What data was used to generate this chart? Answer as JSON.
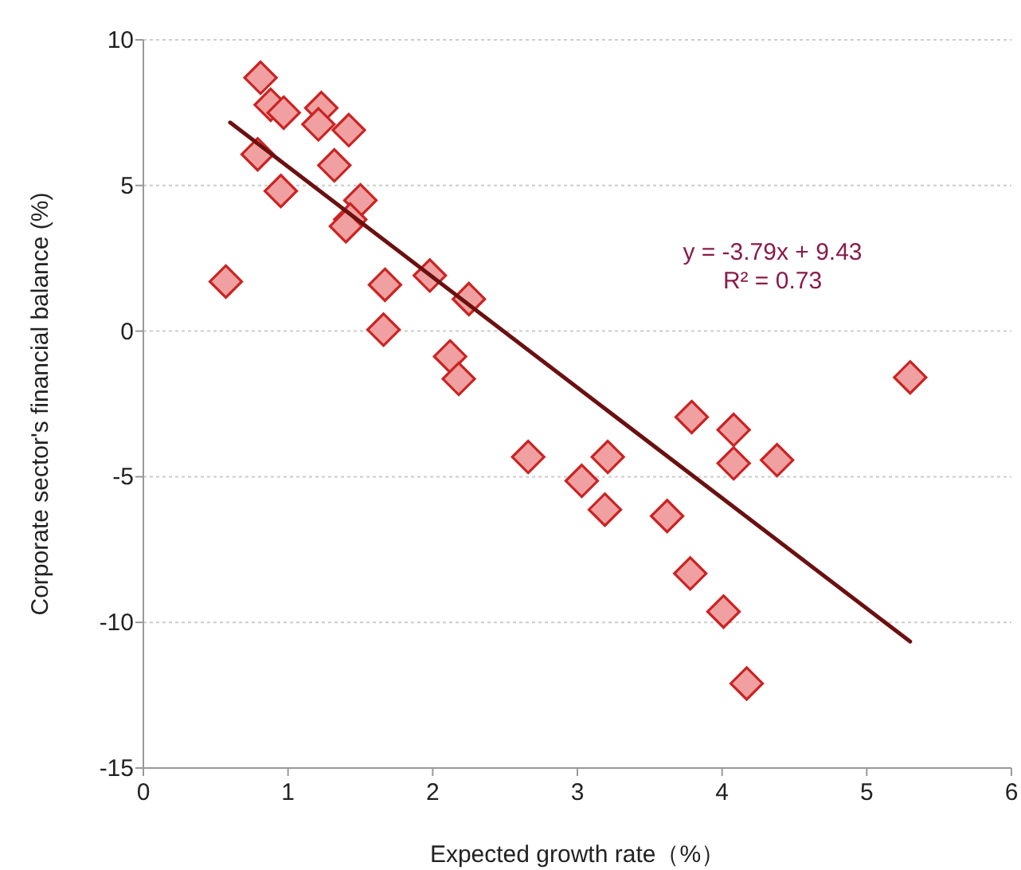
{
  "chart_data": {
    "type": "scatter",
    "xlabel": "Expected growth rate（%）",
    "ylabel": "Corporate sector's financial balance (%)",
    "xlim": [
      0,
      6
    ],
    "xticks": [
      0,
      1,
      2,
      3,
      4,
      5,
      6
    ],
    "ylim": [
      -15,
      10
    ],
    "yticks": [
      {
        "value": -15,
        "label": "-15"
      },
      {
        "value": -10,
        "label": "-10"
      },
      {
        "value": -5,
        "label": "-5"
      },
      0,
      5,
      10
    ],
    "grid": "y",
    "annotations": [
      "y = -3.79x + 9.43\nR² = 0.73"
    ],
    "series": [
      {
        "color": "#f0a0a0",
        "marker": "diamond",
        "x": [
          0.57,
          0.81,
          0.88,
          0.97,
          0.79,
          0.95,
          1.23,
          1.21,
          1.42,
          1.32,
          1.5,
          1.43,
          1.4,
          1.67,
          1.66,
          1.98,
          2.25,
          2.12,
          2.18,
          2.66,
          3.03,
          3.21,
          3.19,
          3.62,
          3.79,
          3.78,
          4.08,
          4.08,
          4.38,
          4.01,
          4.17,
          5.3
        ],
        "values": [
          1.7,
          8.7,
          7.77,
          7.5,
          6.07,
          4.81,
          7.66,
          7.1,
          6.9,
          5.69,
          4.49,
          3.83,
          3.6,
          1.59,
          0.05,
          1.91,
          1.1,
          -0.87,
          -1.64,
          -4.32,
          -5.14,
          -4.32,
          -6.13,
          -6.35,
          -2.95,
          -8.32,
          -3.39,
          -4.54,
          -4.43,
          -9.63,
          -12.1,
          -1.59
        ]
      },
      {
        "type": "line",
        "color": "#6b1010",
        "x": [
          0.6,
          5.3
        ],
        "values": [
          7.16,
          -10.66
        ]
      }
    ]
  }
}
